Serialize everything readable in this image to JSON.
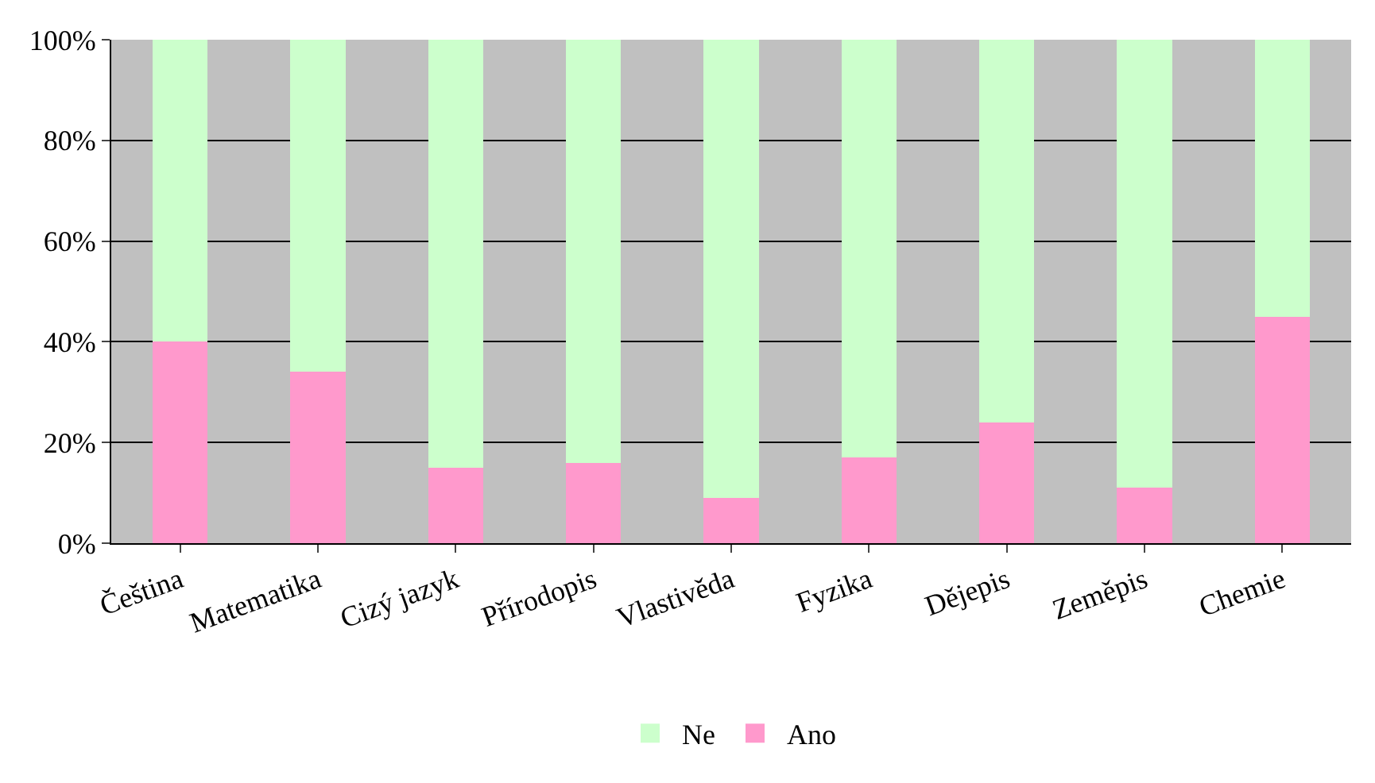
{
  "chart_data": {
    "type": "bar",
    "stacked": true,
    "categories": [
      "Čeština",
      "Matematika",
      "Cizý jazyk",
      "Přírodopis",
      "Vlastivěda",
      "Fyzika",
      "Dějepis",
      "Zeměpis",
      "Chemie"
    ],
    "series": [
      {
        "name": "Ano",
        "color": "#ff99cc",
        "values": [
          40,
          34,
          15,
          16,
          9,
          17,
          24,
          11,
          45
        ]
      },
      {
        "name": "Ne",
        "color": "#ccffcc",
        "values": [
          60,
          66,
          85,
          84,
          91,
          83,
          76,
          89,
          55
        ]
      }
    ],
    "ylim": [
      0,
      100
    ],
    "yticks": [
      {
        "value": 0,
        "label": "0%"
      },
      {
        "value": 20,
        "label": "20%"
      },
      {
        "value": 40,
        "label": "40%"
      },
      {
        "value": 60,
        "label": "60%"
      },
      {
        "value": 80,
        "label": "80%"
      },
      {
        "value": 100,
        "label": "100%"
      }
    ],
    "grid": "y",
    "legend": "bottom"
  }
}
